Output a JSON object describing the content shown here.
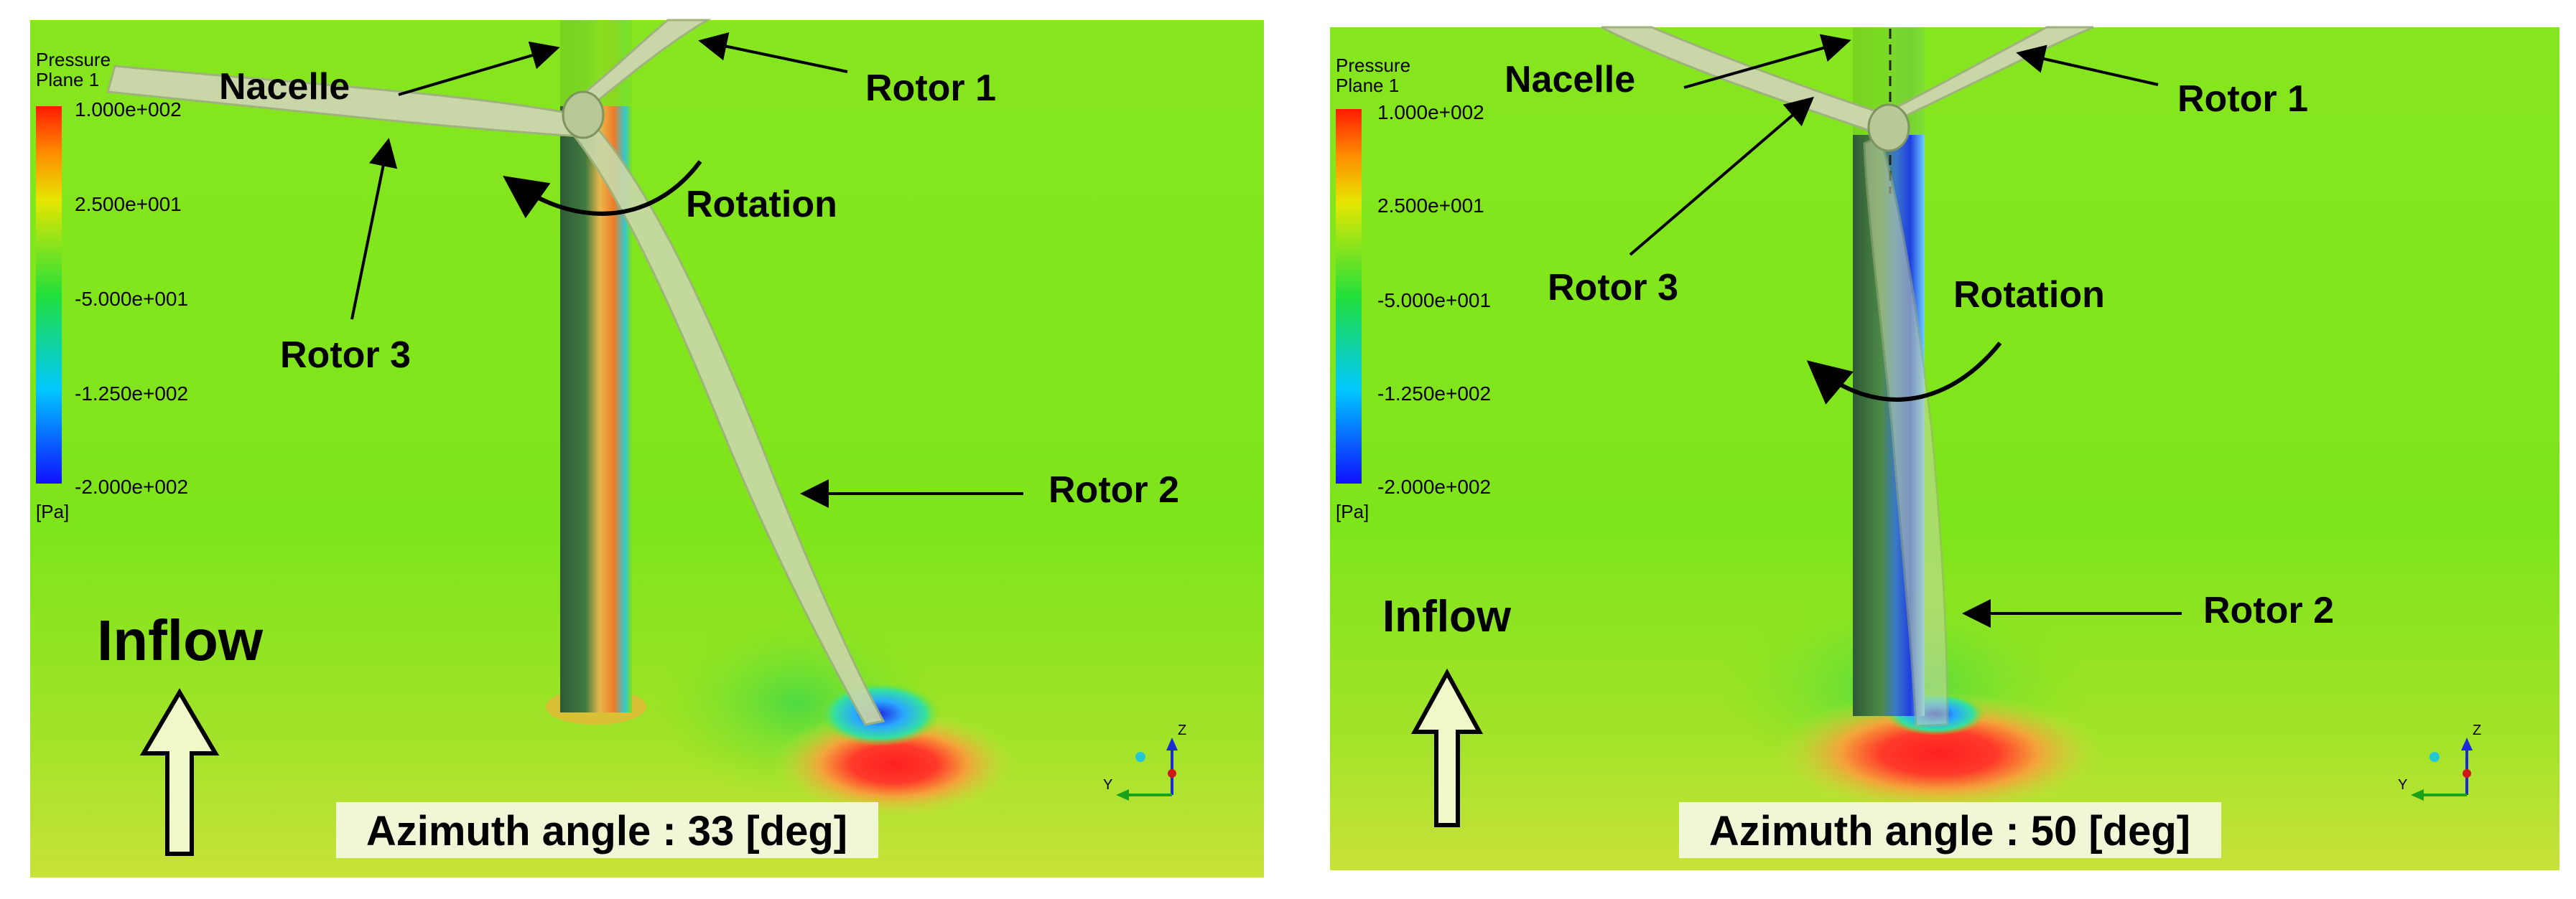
{
  "panels": [
    {
      "legend": {
        "variable": "Pressure",
        "location": "Plane 1",
        "ticks": [
          "1.000e+002",
          "2.500e+001",
          "-5.000e+001",
          "-1.250e+002",
          "-2.000e+002"
        ],
        "unit": "[Pa]"
      },
      "labels": {
        "nacelle": "Nacelle",
        "rotor1": "Rotor 1",
        "rotor2": "Rotor 2",
        "rotor3": "Rotor 3",
        "rotation": "Rotation",
        "inflow": "Inflow"
      },
      "azimuth_text": "Azimuth angle : 33 [deg]",
      "axes": {
        "z": "Z",
        "y": "Y"
      }
    },
    {
      "legend": {
        "variable": "Pressure",
        "location": "Plane 1",
        "ticks": [
          "1.000e+002",
          "2.500e+001",
          "-5.000e+001",
          "-1.250e+002",
          "-2.000e+002"
        ],
        "unit": "[Pa]"
      },
      "labels": {
        "nacelle": "Nacelle",
        "rotor1": "Rotor 1",
        "rotor2": "Rotor 2",
        "rotor3": "Rotor 3",
        "rotation": "Rotation",
        "inflow": "Inflow"
      },
      "azimuth_text": "Azimuth angle : 50 [deg]",
      "axes": {
        "z": "Z",
        "y": "Y"
      }
    }
  ],
  "colors": {
    "field_green": "#7ee51a",
    "tower_dark": "#3f6b3f",
    "pressure_high": "#e8231e",
    "pressure_low": "#1f3ee0",
    "blade": "#c9d7a8",
    "inflow_arrow_fill": "#eef8c8"
  }
}
